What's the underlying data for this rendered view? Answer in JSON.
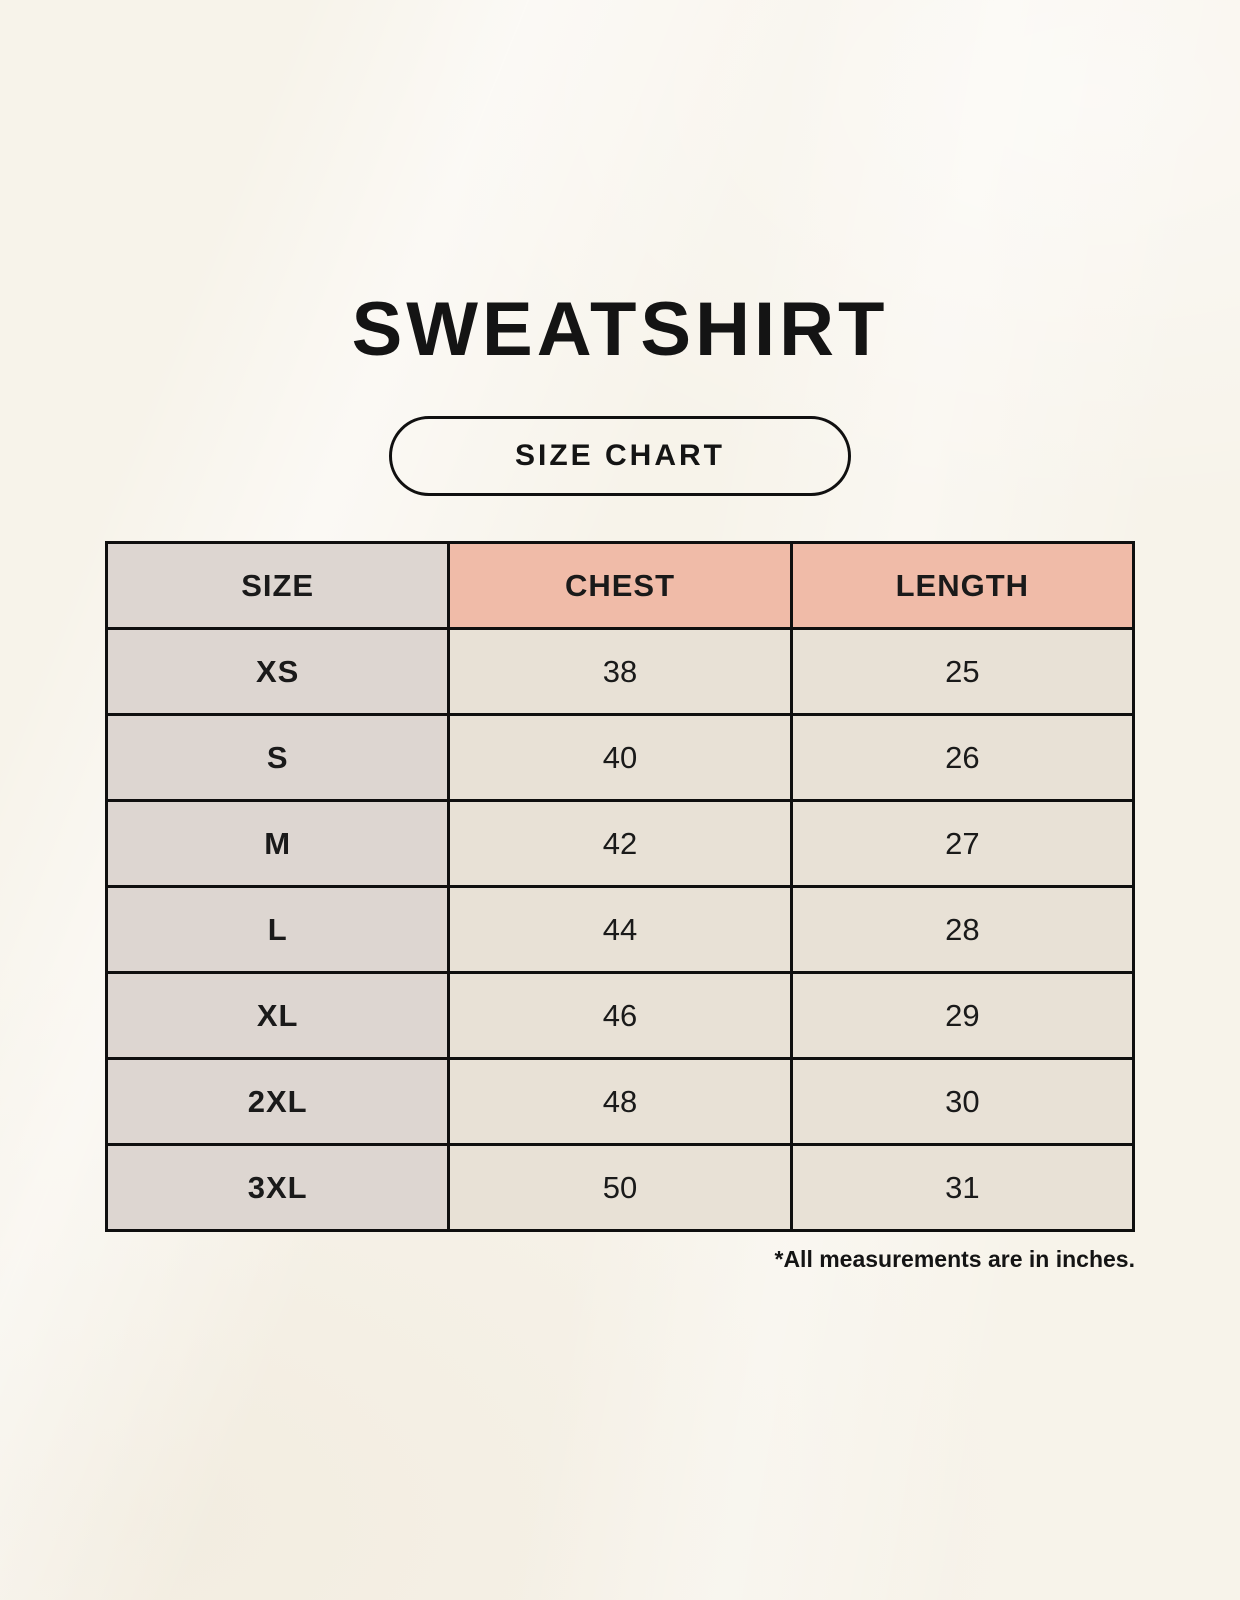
{
  "chart_data": {
    "type": "table",
    "title": "SWEATSHIRT",
    "columns": [
      "SIZE",
      "CHEST",
      "LENGTH"
    ],
    "rows": [
      [
        "XS",
        "38",
        "25"
      ],
      [
        "S",
        "40",
        "26"
      ],
      [
        "M",
        "42",
        "27"
      ],
      [
        "L",
        "44",
        "28"
      ],
      [
        "XL",
        "46",
        "29"
      ],
      [
        "2XL",
        "48",
        "30"
      ],
      [
        "3XL",
        "50",
        "31"
      ]
    ],
    "units": "inches"
  },
  "badge": {
    "label": "SIZE CHART"
  },
  "footnote": "*All measurements are in inches.",
  "colors": {
    "background": "#f7f3ea",
    "size_column_bg": "#ddd6d1",
    "header_accent_bg": "#f0bba8",
    "value_cell_bg": "#e8e1d6",
    "border": "#0f0f0f",
    "text": "#141414"
  }
}
